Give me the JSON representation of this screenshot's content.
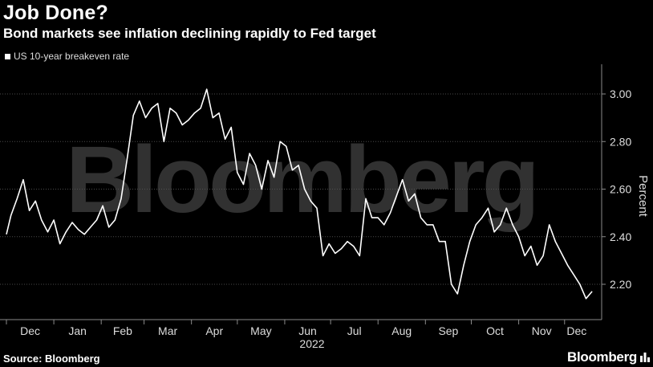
{
  "title": "Job Done?",
  "subtitle": "Bond markets see inflation declining rapidly to Fed target",
  "source": "Source: Bloomberg",
  "brand": "Bloomberg",
  "watermark": "Bloomberg",
  "colors": {
    "background": "#000000",
    "line": "#ffffff",
    "grid": "#4a4a4a",
    "watermark": "#5a5a5a"
  },
  "chart_data": {
    "type": "line",
    "title": "Job Done?",
    "subtitle": "Bond markets see inflation declining rapidly to Fed target",
    "ylabel": "Percent",
    "xlabel": "2022",
    "ylim": [
      2.1,
      3.1
    ],
    "yticks": [
      2.2,
      2.4,
      2.6,
      2.8,
      3.0
    ],
    "ytick_labels": [
      "2.20",
      "2.40",
      "2.60",
      "2.80",
      "3.00"
    ],
    "x_range": [
      "2021-12-01",
      "2022-12-20"
    ],
    "xtick_labels": [
      "Dec",
      "Jan",
      "Feb",
      "Mar",
      "Apr",
      "May",
      "Jun",
      "Jul",
      "Aug",
      "Sep",
      "Oct",
      "Nov",
      "Dec"
    ],
    "xticks": [
      "2021-12-01",
      "2022-01-01",
      "2022-02-01",
      "2022-03-01",
      "2022-04-01",
      "2022-05-01",
      "2022-06-01",
      "2022-07-01",
      "2022-08-01",
      "2022-09-01",
      "2022-10-01",
      "2022-11-01",
      "2022-12-01"
    ],
    "year_label": "2022",
    "grid": true,
    "legend_position": "top-left",
    "series": [
      {
        "name": "US 10-year breakeven rate",
        "x": [
          "2021-12-01",
          "2021-12-04",
          "2021-12-08",
          "2021-12-12",
          "2021-12-16",
          "2021-12-20",
          "2021-12-24",
          "2021-12-28",
          "2022-01-01",
          "2022-01-05",
          "2022-01-09",
          "2022-01-13",
          "2022-01-17",
          "2022-01-21",
          "2022-01-25",
          "2022-01-29",
          "2022-02-02",
          "2022-02-06",
          "2022-02-10",
          "2022-02-14",
          "2022-02-18",
          "2022-02-22",
          "2022-02-26",
          "2022-03-02",
          "2022-03-06",
          "2022-03-10",
          "2022-03-14",
          "2022-03-18",
          "2022-03-22",
          "2022-03-26",
          "2022-03-30",
          "2022-04-03",
          "2022-04-07",
          "2022-04-11",
          "2022-04-15",
          "2022-04-19",
          "2022-04-23",
          "2022-04-27",
          "2022-05-01",
          "2022-05-05",
          "2022-05-09",
          "2022-05-13",
          "2022-05-17",
          "2022-05-21",
          "2022-05-25",
          "2022-05-29",
          "2022-06-02",
          "2022-06-06",
          "2022-06-10",
          "2022-06-14",
          "2022-06-18",
          "2022-06-22",
          "2022-06-26",
          "2022-06-30",
          "2022-07-04",
          "2022-07-08",
          "2022-07-12",
          "2022-07-16",
          "2022-07-20",
          "2022-07-24",
          "2022-07-28",
          "2022-08-01",
          "2022-08-05",
          "2022-08-09",
          "2022-08-13",
          "2022-08-17",
          "2022-08-21",
          "2022-08-25",
          "2022-08-29",
          "2022-09-02",
          "2022-09-06",
          "2022-09-10",
          "2022-09-14",
          "2022-09-18",
          "2022-09-22",
          "2022-09-26",
          "2022-09-30",
          "2022-10-04",
          "2022-10-08",
          "2022-10-12",
          "2022-10-16",
          "2022-10-20",
          "2022-10-24",
          "2022-10-28",
          "2022-11-01",
          "2022-11-05",
          "2022-11-09",
          "2022-11-13",
          "2022-11-17",
          "2022-11-21",
          "2022-11-25",
          "2022-11-29",
          "2022-12-03",
          "2022-12-07",
          "2022-12-11",
          "2022-12-15",
          "2022-12-19"
        ],
        "y": [
          2.41,
          2.49,
          2.56,
          2.64,
          2.51,
          2.55,
          2.47,
          2.42,
          2.47,
          2.37,
          2.42,
          2.46,
          2.43,
          2.41,
          2.44,
          2.47,
          2.53,
          2.44,
          2.47,
          2.56,
          2.73,
          2.91,
          2.97,
          2.9,
          2.94,
          2.96,
          2.8,
          2.94,
          2.92,
          2.87,
          2.89,
          2.92,
          2.94,
          3.02,
          2.9,
          2.92,
          2.81,
          2.86,
          2.67,
          2.62,
          2.75,
          2.7,
          2.6,
          2.72,
          2.65,
          2.8,
          2.78,
          2.68,
          2.7,
          2.6,
          2.55,
          2.52,
          2.32,
          2.37,
          2.33,
          2.35,
          2.38,
          2.36,
          2.32,
          2.56,
          2.48,
          2.48,
          2.45,
          2.5,
          2.57,
          2.64,
          2.55,
          2.58,
          2.48,
          2.45,
          2.45,
          2.38,
          2.38,
          2.2,
          2.16,
          2.28,
          2.38,
          2.45,
          2.48,
          2.52,
          2.42,
          2.45,
          2.52,
          2.45,
          2.4,
          2.32,
          2.36,
          2.28,
          2.32,
          2.45,
          2.38,
          2.33,
          2.28,
          2.24,
          2.2,
          2.14,
          2.17
        ]
      }
    ]
  }
}
